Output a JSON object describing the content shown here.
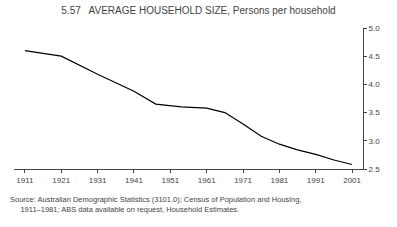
{
  "chart_data": {
    "type": "line",
    "title": "5.57   AVERAGE HOUSEHOLD SIZE, Persons per household",
    "x": [
      1911,
      1921,
      1931,
      1941,
      1947,
      1954,
      1961,
      1966,
      1971,
      1976,
      1981,
      1986,
      1991,
      1996,
      2001
    ],
    "values": [
      4.6,
      4.5,
      4.18,
      3.88,
      3.65,
      3.6,
      3.58,
      3.5,
      3.3,
      3.08,
      2.94,
      2.84,
      2.76,
      2.66,
      2.58
    ],
    "color": "#000000",
    "xlim": [
      1908,
      2004
    ],
    "xticks": [
      1911,
      1921,
      1931,
      1941,
      1951,
      1961,
      1971,
      1981,
      1991,
      2001
    ],
    "ylim": [
      2.5,
      5.0
    ],
    "yticks": [
      2.5,
      {
        "value": 3.0,
        "label": "3.0"
      },
      3.5,
      {
        "value": 4.0,
        "label": "4.0"
      },
      4.5,
      {
        "value": 5.0,
        "label": "5.0"
      }
    ],
    "grid": false,
    "annotations": [
      "Source: Australian Demographic Statistics (3101.0); Census of Population and Housing,",
      "     1911–1981; ABS data available on request, Household Estimates."
    ]
  }
}
